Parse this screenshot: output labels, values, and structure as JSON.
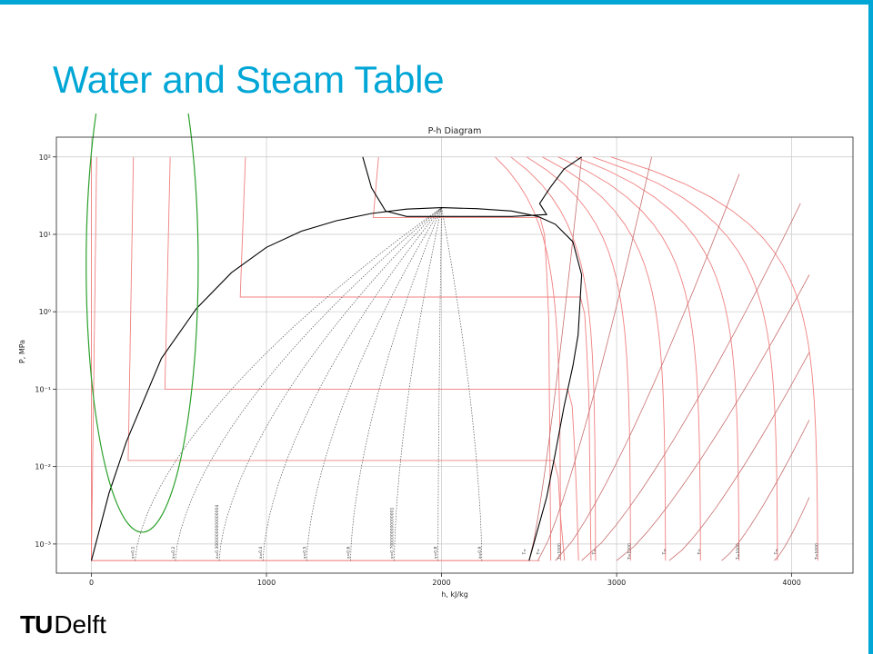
{
  "slide": {
    "title": "Water and Steam Table",
    "logo_mark": "TU",
    "logo_word": "Delft",
    "accent_color": "#00a6d6"
  },
  "chart_data": {
    "type": "line",
    "title": "P-h Diagram",
    "xlabel": "h, kJ/kg",
    "ylabel": "P, MPa",
    "xlim": [
      -200,
      4350
    ],
    "ylim": [
      0.00042,
      180
    ],
    "yscale": "log",
    "grid": true,
    "legend": "none",
    "x_ticks": [
      0,
      1000,
      2000,
      3000,
      4000
    ],
    "x_tick_labels": [
      "0",
      "1000",
      "2000",
      "3000",
      "4000"
    ],
    "y_ticks": [
      0.001,
      0.01,
      0.1,
      1,
      10,
      100
    ],
    "y_tick_labels": [
      "10⁻³",
      "10⁻²",
      "10⁻¹",
      "10⁰",
      "10¹",
      "10²"
    ],
    "colors": {
      "saturation": "#000000",
      "quality": "#555555",
      "temperature": "#f08080",
      "entropy": "#c86e6e",
      "annotation": "#2ca02c"
    },
    "saturation_dome": [
      [
        0,
        0.00061
      ],
      [
        100,
        0.0045
      ],
      [
        200,
        0.021
      ],
      [
        400,
        0.25
      ],
      [
        600,
        1.1
      ],
      [
        800,
        3.2
      ],
      [
        1000,
        6.8
      ],
      [
        1200,
        11.0
      ],
      [
        1400,
        15.0
      ],
      [
        1600,
        18.6
      ],
      [
        1800,
        21.2
      ],
      [
        2000,
        22.1
      ],
      [
        2200,
        21.5
      ],
      [
        2400,
        20.0
      ],
      [
        2550,
        17.0
      ],
      [
        2650,
        13.5
      ],
      [
        2750,
        8.0
      ],
      [
        2800,
        3.0
      ],
      [
        2780,
        0.5
      ],
      [
        2750,
        0.2
      ],
      [
        2700,
        0.06
      ],
      [
        2650,
        0.015
      ],
      [
        2600,
        0.004
      ],
      [
        2500,
        0.00061
      ]
    ],
    "quality_lines": [
      {
        "label": "x=0.1",
        "x": [
          250,
          1960
        ]
      },
      {
        "label": "x=0.2",
        "x": [
          480,
          1960
        ]
      },
      {
        "label": "x=0.30000000000000004",
        "x": [
          730,
          1975
        ]
      },
      {
        "label": "x=0.4",
        "x": [
          980,
          1990
        ]
      },
      {
        "label": "x=0.5",
        "x": [
          1230,
          2010
        ]
      },
      {
        "label": "x=0.6",
        "x": [
          1480,
          2040
        ]
      },
      {
        "label": "x=0.7000000000000001",
        "x": [
          1730,
          2075
        ]
      },
      {
        "label": "x=0.8",
        "x": [
          1980,
          2120
        ]
      },
      {
        "label": "x=0.9",
        "x": [
          2230,
          2175
        ]
      }
    ],
    "temperature_lines": [
      {
        "label": "",
        "h_liq": 0,
        "p_sat": 0.00061
      },
      {
        "label": "",
        "h_liq": 210,
        "p_sat": 0.012
      },
      {
        "label": "",
        "h_liq": 420,
        "p_sat": 0.1
      },
      {
        "label": "",
        "h_liq": 850,
        "p_sat": 1.55
      },
      {
        "label": "",
        "h_liq": 1610,
        "p_sat": 16.5
      }
    ],
    "isotherm_labels": [
      "T=",
      "T=",
      "T=1000",
      "T=",
      "T=1000",
      "T=",
      "T=",
      "T=1000",
      "T=",
      "T=1000"
    ],
    "isotherm_label_h": [
      2480,
      2560,
      2680,
      2880,
      3080,
      3280,
      3480,
      3700,
      3920,
      4150
    ],
    "entropy_lines": [
      {
        "x": [
          2500,
          2800
        ],
        "y": [
          0.00061,
          100
        ]
      },
      {
        "x": [
          2550,
          3200
        ],
        "y": [
          0.00061,
          100
        ]
      },
      {
        "x": [
          2650,
          3700
        ],
        "y": [
          0.00061,
          60
        ]
      },
      {
        "x": [
          2800,
          4050
        ],
        "y": [
          0.00061,
          25
        ]
      },
      {
        "x": [
          3000,
          4100
        ],
        "y": [
          0.00061,
          3
        ]
      },
      {
        "x": [
          3300,
          4100
        ],
        "y": [
          0.00061,
          0.3
        ]
      },
      {
        "x": [
          3600,
          4100
        ],
        "y": [
          0.00061,
          0.04
        ]
      },
      {
        "x": [
          3900,
          4100
        ],
        "y": [
          0.00061,
          0.004
        ]
      }
    ],
    "highlight_ellipse": {
      "h_center": 290,
      "p_center": 4.0,
      "h_radius": 320,
      "p_decades": 6.9
    }
  }
}
